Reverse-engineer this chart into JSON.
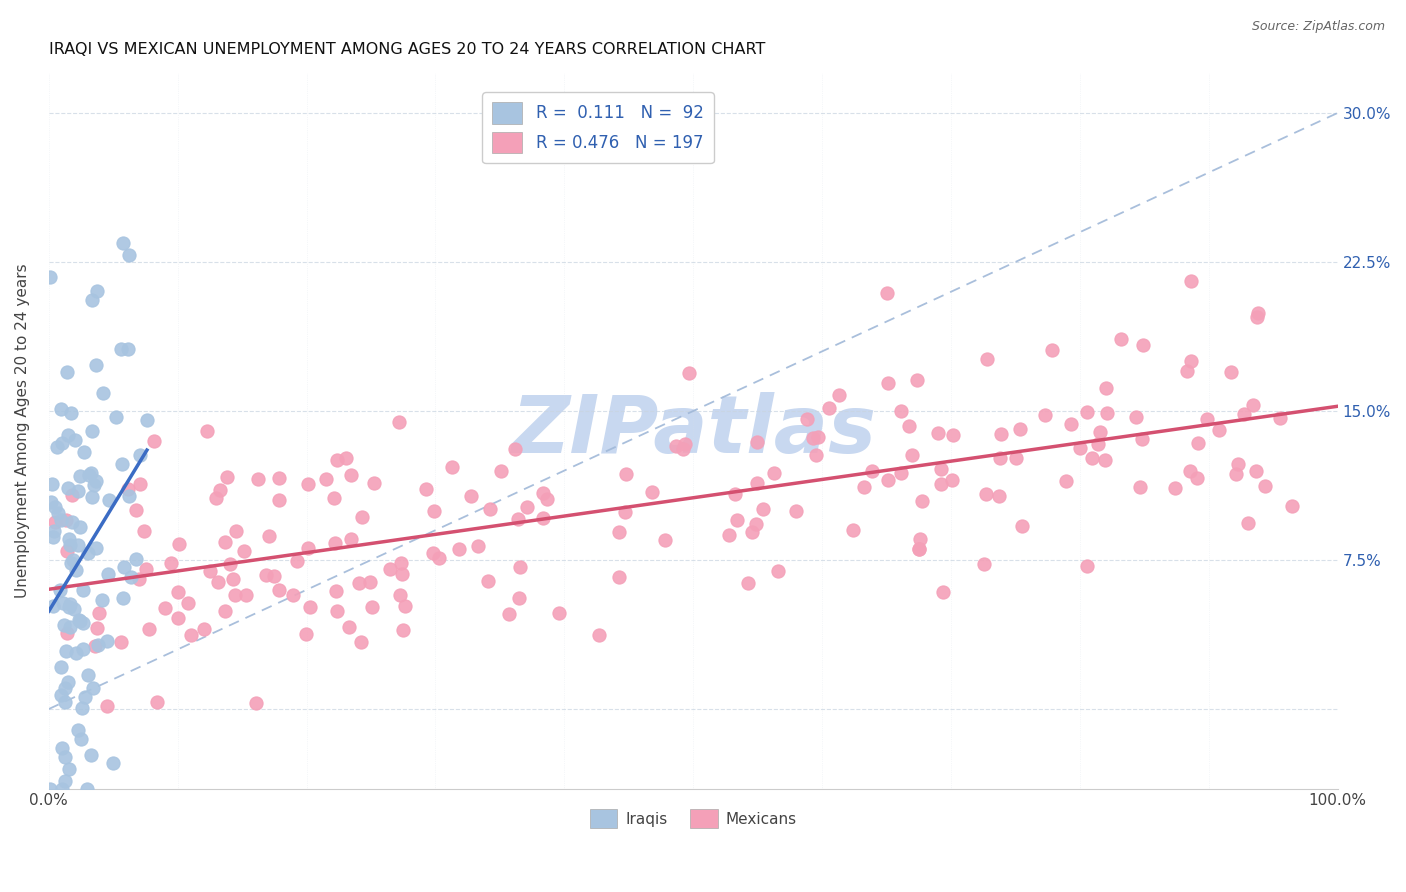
{
  "title": "IRAQI VS MEXICAN UNEMPLOYMENT AMONG AGES 20 TO 24 YEARS CORRELATION CHART",
  "source": "Source: ZipAtlas.com",
  "ylabel": "Unemployment Among Ages 20 to 24 years",
  "xlim": [
    0,
    1.0
  ],
  "ylim": [
    -0.04,
    0.32
  ],
  "x_tick_positions": [
    0.0,
    0.1,
    0.2,
    0.3,
    0.4,
    0.5,
    0.6,
    0.7,
    0.8,
    0.9,
    1.0
  ],
  "x_tick_labels": [
    "0.0%",
    "",
    "",
    "",
    "",
    "",
    "",
    "",
    "",
    "",
    "100.0%"
  ],
  "y_tick_positions": [
    0.0,
    0.075,
    0.15,
    0.225,
    0.3
  ],
  "y_tick_labels_right": [
    "",
    "7.5%",
    "15.0%",
    "22.5%",
    "30.0%"
  ],
  "iraqi_R": 0.111,
  "iraqi_N": 92,
  "mexican_R": 0.476,
  "mexican_N": 197,
  "iraqi_color": "#a8c4e0",
  "mexican_color": "#f4a0b8",
  "iraqi_line_color": "#3b6cc4",
  "mexican_line_color": "#d45070",
  "dashed_line_color": "#a0b8d8",
  "legend_text_color": "#3060b0",
  "watermark_color": "#c8d8f0",
  "background_color": "#ffffff",
  "title_fontsize": 11.5,
  "axis_label_color": "#3060b0"
}
